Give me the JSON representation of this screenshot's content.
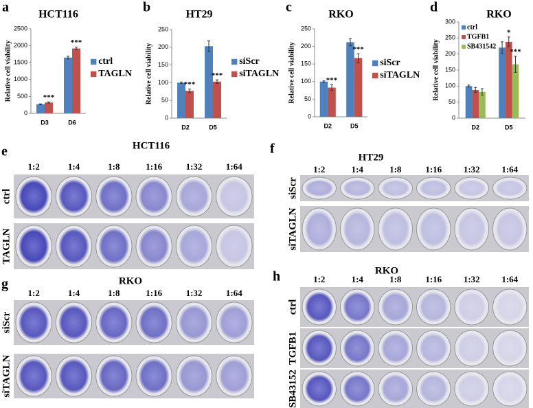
{
  "chart_data": [
    {
      "type": "bar",
      "panel": "a",
      "title": "HCT116",
      "y_label": "Relative cell viability",
      "categories": [
        "D3",
        "D6"
      ],
      "series": [
        {
          "name": "ctrl",
          "color": "#4f81bd",
          "values": [
            270,
            1650
          ],
          "errors": [
            10,
            40
          ],
          "annotations": [
            null,
            null
          ]
        },
        {
          "name": "TAGLN",
          "color": "#c0504d",
          "values": [
            320,
            1920
          ],
          "errors": [
            15,
            40
          ],
          "annotations": [
            "***",
            "***"
          ]
        }
      ],
      "ylim": [
        0,
        2500
      ],
      "yticks": [
        0,
        500,
        1000,
        1500,
        2000,
        2500
      ],
      "legend": "right"
    },
    {
      "type": "bar",
      "panel": "b",
      "title": "HT29",
      "y_label": "Relative cell viability",
      "categories": [
        "D2",
        "D5"
      ],
      "series": [
        {
          "name": "siScr",
          "color": "#4f81bd",
          "values": [
            100,
            203
          ],
          "errors": [
            2,
            15
          ],
          "annotations": [
            null,
            null
          ]
        },
        {
          "name": "siTAGLN",
          "color": "#c0504d",
          "values": [
            77,
            103
          ],
          "errors": [
            5,
            5
          ],
          "annotations": [
            "***",
            "***"
          ]
        }
      ],
      "ylim": [
        0,
        250
      ],
      "yticks": [
        0,
        50,
        100,
        150,
        200,
        250
      ],
      "legend": "right"
    },
    {
      "type": "bar",
      "panel": "c",
      "title": "RKO",
      "y_label": "Relative cell viability",
      "categories": [
        "D2",
        "D5"
      ],
      "series": [
        {
          "name": "siScr",
          "color": "#4f81bd",
          "values": [
            100,
            212
          ],
          "errors": [
            2,
            10
          ],
          "annotations": [
            null,
            null
          ]
        },
        {
          "name": "siTAGLN",
          "color": "#c0504d",
          "values": [
            83,
            167
          ],
          "errors": [
            8,
            12
          ],
          "annotations": [
            "***",
            "***"
          ]
        }
      ],
      "ylim": [
        0,
        250
      ],
      "yticks": [
        0,
        50,
        100,
        150,
        200,
        250
      ],
      "legend": "right"
    },
    {
      "type": "bar",
      "panel": "d",
      "title": "RKO",
      "y_label": "Relative cell viability",
      "categories": [
        "D2",
        "D5"
      ],
      "series": [
        {
          "name": "ctrl",
          "color": "#4f81bd",
          "values": [
            100,
            220
          ],
          "errors": [
            3,
            18
          ],
          "annotations": [
            null,
            null
          ]
        },
        {
          "name": "TGFB1",
          "color": "#c0504d",
          "values": [
            88,
            238
          ],
          "errors": [
            8,
            15
          ],
          "annotations": [
            null,
            "*"
          ]
        },
        {
          "name": "SB431542",
          "color": "#9bbb59",
          "values": [
            82,
            168
          ],
          "errors": [
            10,
            25
          ],
          "annotations": [
            null,
            "***"
          ]
        }
      ],
      "ylim": [
        0,
        300
      ],
      "yticks": [
        0,
        50,
        100,
        150,
        200,
        250,
        300
      ],
      "legend": "upper left"
    }
  ],
  "plates": [
    {
      "panel": "e",
      "title": "HCT116",
      "dilutions": [
        "1:2",
        "1:4",
        "1:8",
        "1:16",
        "1:32",
        "1:64"
      ],
      "rows": [
        "ctrl",
        "TAGLN"
      ]
    },
    {
      "panel": "f",
      "title": "HT29",
      "dilutions": [
        "1:2",
        "1:4",
        "1:8",
        "1:16",
        "1:32",
        "1:64"
      ],
      "rows": [
        "siScr",
        "siTAGLN"
      ]
    },
    {
      "panel": "g",
      "title": "RKO",
      "dilutions": [
        "1:2",
        "1:4",
        "1:8",
        "1:16",
        "1:32",
        "1:64"
      ],
      "rows": [
        "siScr",
        "siTAGLN"
      ]
    },
    {
      "panel": "h",
      "title": "RKO",
      "dilutions": [
        "1:2",
        "1:4",
        "1:8",
        "1:16",
        "1:32",
        "1:64"
      ],
      "rows": [
        "ctrl",
        "TGFB1",
        "SB43152"
      ]
    }
  ]
}
